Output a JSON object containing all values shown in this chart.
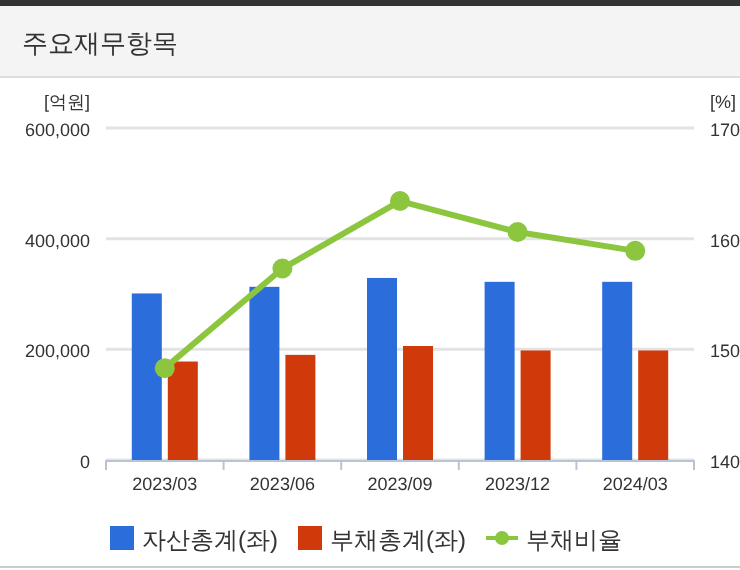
{
  "chart_data": {
    "type": "bar",
    "title": "주요재무항목",
    "ylabel": "[억원]",
    "y2label": "[%]",
    "categories": [
      "2023/03",
      "2023/06",
      "2023/09",
      "2023/12",
      "2024/03"
    ],
    "series": [
      {
        "name": "자산총계(좌)",
        "color": "#2a6ddb",
        "values": [
          301000,
          313000,
          329000,
          322000,
          322000
        ]
      },
      {
        "name": "부채총계(좌)",
        "color": "#d0390a",
        "values": [
          178000,
          190000,
          206000,
          198000,
          198000
        ]
      },
      {
        "name": "부채비율",
        "type": "line",
        "axis": "y2",
        "marker": "circle",
        "color": "#8cc63f",
        "values": [
          148.3,
          157.3,
          163.4,
          160.6,
          158.9
        ]
      }
    ],
    "ylim": [
      0,
      600000
    ],
    "yticks": [
      0,
      {
        "value": 200000,
        "label": "200,000"
      },
      {
        "value": 400000,
        "label": "400,000"
      },
      {
        "value": 600000,
        "label": "600,000"
      }
    ],
    "y2lim": [
      140,
      170
    ],
    "y2ticks": [
      140,
      150,
      160,
      170
    ],
    "grid": "y",
    "legend": "bottom"
  }
}
